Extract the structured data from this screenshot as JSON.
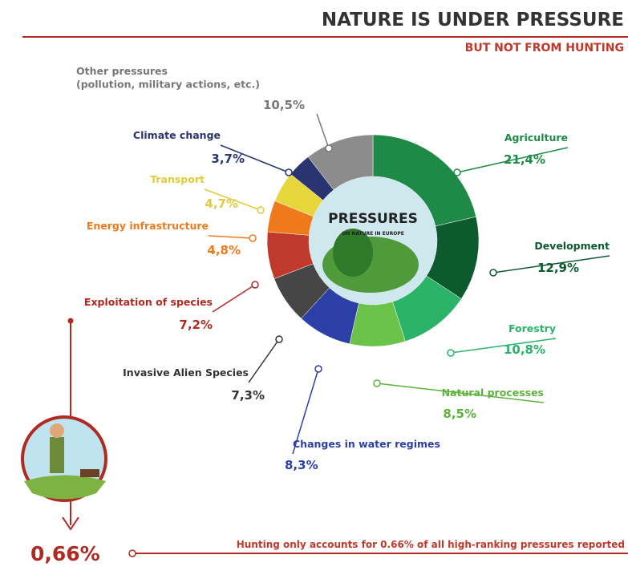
{
  "chart_data": {
    "type": "donut",
    "title": "NATURE IS UNDER PRESSURE",
    "subtitle": "BUT NOT FROM HUNTING",
    "center_title": "PRESSURES",
    "center_subtitle": "ON NATURE IN EUROPE",
    "categories": [
      "Agriculture",
      "Development",
      "Forestry",
      "Natural processes",
      "Changes in water regimes",
      "Invasive Alien Species",
      "Exploitation of species",
      "Energy infrastructure",
      "Transport",
      "Climate change",
      "Other pressures\n(pollution, military actions, etc.)"
    ],
    "values": [
      21.4,
      12.9,
      10.8,
      8.5,
      8.3,
      7.3,
      7.2,
      4.8,
      4.7,
      3.7,
      10.5
    ],
    "value_labels": [
      "21,4%",
      "12,9%",
      "10,8%",
      "8,5%",
      "8,3%",
      "7,3%",
      "7,2%",
      "4,8%",
      "4,7%",
      "3,7%",
      "10,5%"
    ],
    "colors": [
      "#1f8a47",
      "#0e5a2f",
      "#2bb36a",
      "#6cc34a",
      "#2b3fa6",
      "#464646",
      "#c0392b",
      "#ef7a1c",
      "#e6d63c",
      "#2a3470",
      "#8c8c8c"
    ],
    "hunting_value_label": "0,66%",
    "hunting_note": "Hunting only accounts for 0.66% of all high-ranking pressures reported"
  }
}
